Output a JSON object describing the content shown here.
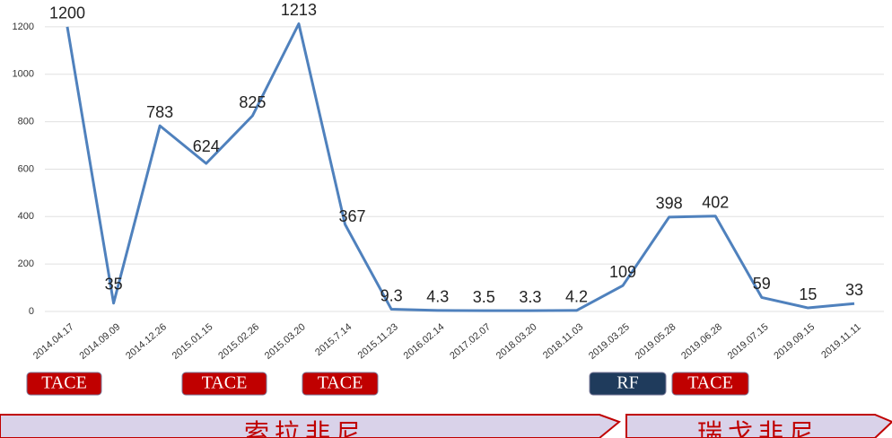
{
  "chart_data": {
    "type": "line",
    "categories": [
      "2014.04.17",
      "2014.09.09",
      "2014.12.26",
      "2015.01.15",
      "2015.02.26",
      "2015.03.20",
      "2015.7.14",
      "2015.11.23",
      "2016.02.14",
      "2017.02.07",
      "2018.03.20",
      "2018.11.03",
      "2019.03.25",
      "2019.05.28",
      "2019.06.28",
      "2019.07.15",
      "2019.09.15",
      "2019.11.11"
    ],
    "series": [
      {
        "color": "#4f81bd",
        "values": [
          1200,
          35,
          783,
          624,
          825,
          1213,
          367,
          9.3,
          4.3,
          3.5,
          3.3,
          4.2,
          109,
          398,
          402,
          59,
          15,
          33
        ]
      }
    ],
    "ylim": [
      0,
      1300
    ],
    "yticks": [
      0,
      200,
      400,
      600,
      800,
      1000,
      1200
    ],
    "grid": true,
    "treatments": [
      {
        "label": "TACE",
        "color": "#c00000"
      },
      {
        "label": "TACE",
        "color": "#c00000"
      },
      {
        "label": "TACE",
        "color": "#c00000"
      },
      {
        "label": "RF",
        "color": "#1f3b5c"
      },
      {
        "label": "TACE",
        "color": "#c00000"
      }
    ],
    "drugs": [
      {
        "label": "索拉非尼",
        "color": "#c00000"
      },
      {
        "label": "瑞戈非尼",
        "color": "#c00000"
      }
    ]
  }
}
